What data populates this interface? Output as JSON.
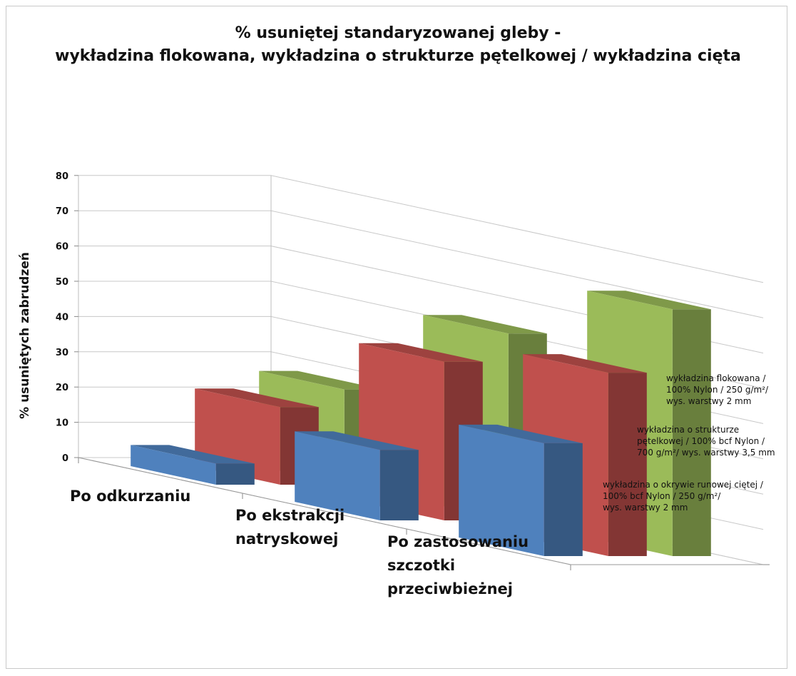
{
  "chart_data": {
    "type": "bar",
    "title": "% usuniętej standaryzowanej gleby -",
    "subtitle": "wykładzina flokowana, wykładzina o strukturze pętelkowej / wykładzina cięta",
    "ylabel": "% usuniętych zabrudzeń",
    "ylim": [
      0,
      80
    ],
    "yticks": [
      "0",
      "10",
      "20",
      "30",
      "40",
      "50",
      "60",
      "70",
      "80"
    ],
    "categories": [
      [
        "Po odkurzaniu"
      ],
      [
        "Po ekstrakcji",
        "natryskowej"
      ],
      [
        "Po zastosowaniu",
        "szczotki",
        "przeciwbieżnej"
      ]
    ],
    "series": [
      {
        "label_lines": [
          "wykładzina o okrywie runowej ciętej /",
          "100% bcf Nylon / 250 g/m²/",
          "wys. warstwy 2 mm"
        ],
        "color": "#4f81bd",
        "values": [
          6,
          20,
          32
        ]
      },
      {
        "label_lines": [
          "wykładzina o strukturze",
          "pętelkowej / 100% bcf Nylon /",
          "700 g/m²/ wys. warstwy 3,5 mm"
        ],
        "color": "#c0504d",
        "values": [
          22,
          45,
          52
        ]
      },
      {
        "label_lines": [
          "wykładzina flokowana /",
          "100% Nylon / 250 g/m²/",
          "wys. warstwy 2 mm"
        ],
        "color": "#9bbb59",
        "values": [
          27,
          53,
          70
        ]
      }
    ],
    "grid": true
  }
}
